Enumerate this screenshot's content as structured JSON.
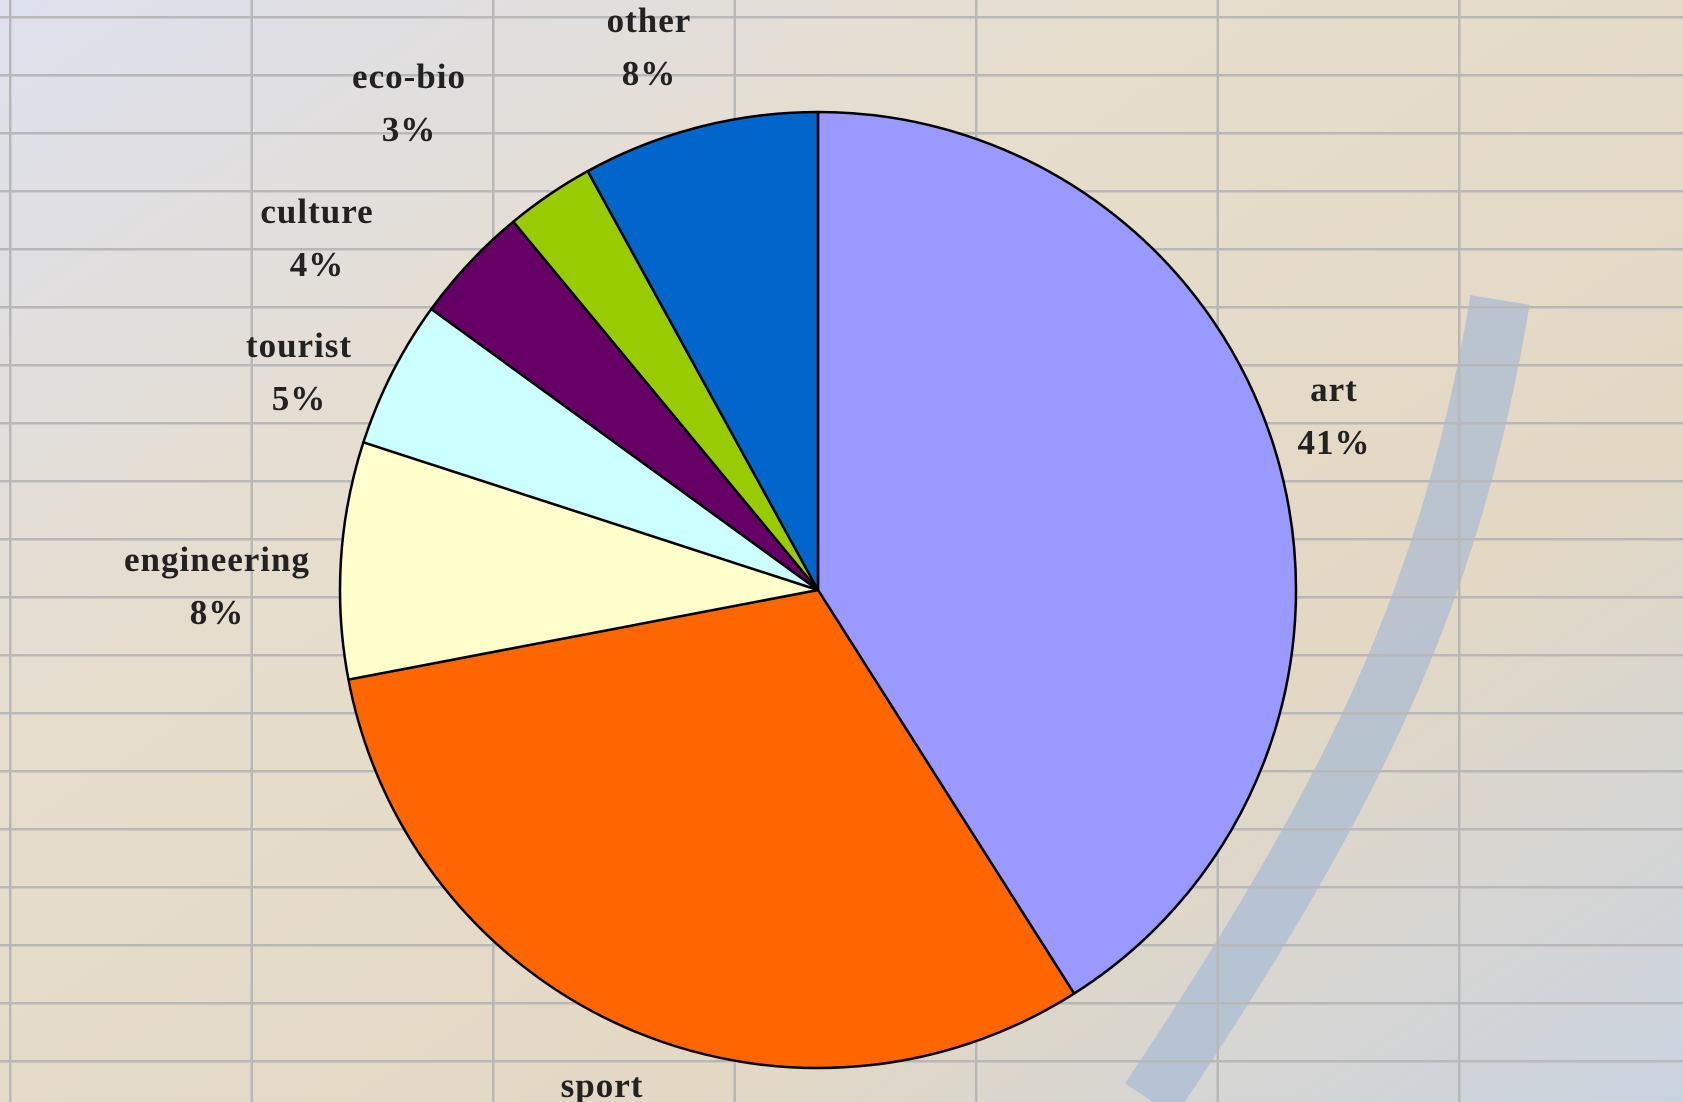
{
  "chart_data": {
    "type": "pie",
    "categories": [
      "art",
      "sport",
      "engineering",
      "tourist",
      "culture",
      "eco-bio",
      "other"
    ],
    "values": [
      41,
      31,
      8,
      5,
      4,
      3,
      8
    ],
    "value_labels": [
      "41%",
      null,
      "8%",
      "5%",
      "4%",
      "3%",
      "8%"
    ],
    "colors": [
      "#9999ff",
      "#ff6600",
      "#ffffcc",
      "#ccffff",
      "#660066",
      "#99cc00",
      "#0066cc"
    ]
  }
}
